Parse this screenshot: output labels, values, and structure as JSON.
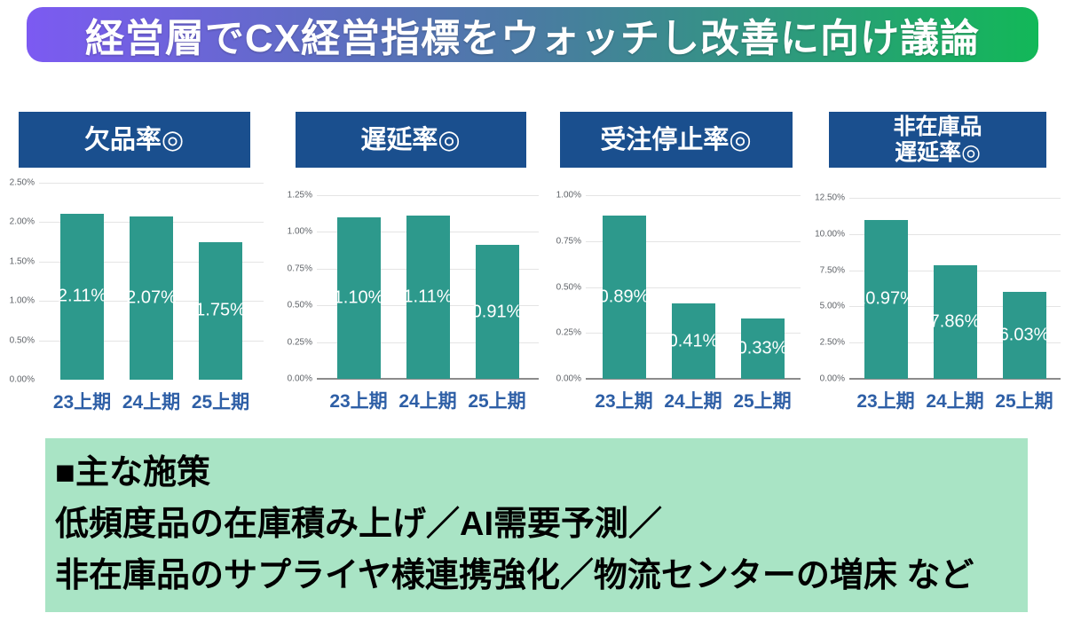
{
  "banner": {
    "title": "経営層でCX経営指標をウォッチし改善に向け議論"
  },
  "colors": {
    "gradient_left": "#7C5AF2",
    "gradient_mid": "#4A7BA2",
    "gradient_right": "#12B858",
    "chart_header_bg": "#1A4F8E",
    "bar": "#2D998C",
    "x_label": "#2E5FA6",
    "y_tick": "#5F6368",
    "gridline": "#E4E4E4",
    "axis_line": "#8C8C8C",
    "data_label": "#FFFFFF",
    "measures_bg": "#A9E4C5"
  },
  "chart_data": [
    {
      "type": "bar",
      "title": "欠品率◎",
      "title_lines": [
        "欠品率◎"
      ],
      "categories": [
        "23上期",
        "24上期",
        "25上期"
      ],
      "values": [
        2.11,
        2.07,
        1.75
      ],
      "value_labels": [
        "2.11%",
        "2.07%",
        "1.75%"
      ],
      "ylim": [
        0,
        2.5
      ],
      "yticks": [
        "2.50%",
        "2.00%",
        "1.50%",
        "1.00%",
        "0.50%",
        "0.00%"
      ],
      "grid": true,
      "baseline": false,
      "legend": "none"
    },
    {
      "type": "bar",
      "title": "遅延率◎",
      "title_lines": [
        "遅延率◎"
      ],
      "categories": [
        "23上期",
        "24上期",
        "25上期"
      ],
      "values": [
        1.1,
        1.11,
        0.91
      ],
      "value_labels": [
        "1.10%",
        "1.11%",
        "0.91%"
      ],
      "ylim": [
        0,
        1.25
      ],
      "yticks": [
        "1.25%",
        "1.00%",
        "0.75%",
        "0.50%",
        "0.25%",
        "0.00%"
      ],
      "grid": true,
      "baseline": true,
      "legend": "none"
    },
    {
      "type": "bar",
      "title": "受注停止率◎",
      "title_lines": [
        "受注停止率◎"
      ],
      "categories": [
        "23上期",
        "24上期",
        "25上期"
      ],
      "values": [
        0.89,
        0.41,
        0.33
      ],
      "value_labels": [
        "0.89%",
        "0.41%",
        "0.33%"
      ],
      "ylim": [
        0,
        1.0
      ],
      "yticks": [
        "1.00%",
        "0.75%",
        "0.50%",
        "0.25%",
        "0.00%"
      ],
      "grid": true,
      "baseline": true,
      "legend": "none"
    },
    {
      "type": "bar",
      "title": "非在庫品遅延率◎",
      "title_lines": [
        "非在庫品",
        "遅延率◎"
      ],
      "categories": [
        "23上期",
        "24上期",
        "25上期"
      ],
      "values": [
        10.97,
        7.86,
        6.03
      ],
      "value_labels": [
        "10.97%",
        "7.86%",
        "6.03%"
      ],
      "ylim": [
        0,
        12.5
      ],
      "yticks": [
        "12.50%",
        "10.00%",
        "7.50%",
        "5.00%",
        "2.50%",
        "0.00%"
      ],
      "grid": true,
      "baseline": true,
      "legend": "none"
    }
  ],
  "measures": {
    "heading": "■主な施策",
    "lines": [
      "低頻度品の在庫積み上げ／AI需要予測／",
      "非在庫品のサプライヤ様連携強化／物流センターの増床 など"
    ]
  }
}
